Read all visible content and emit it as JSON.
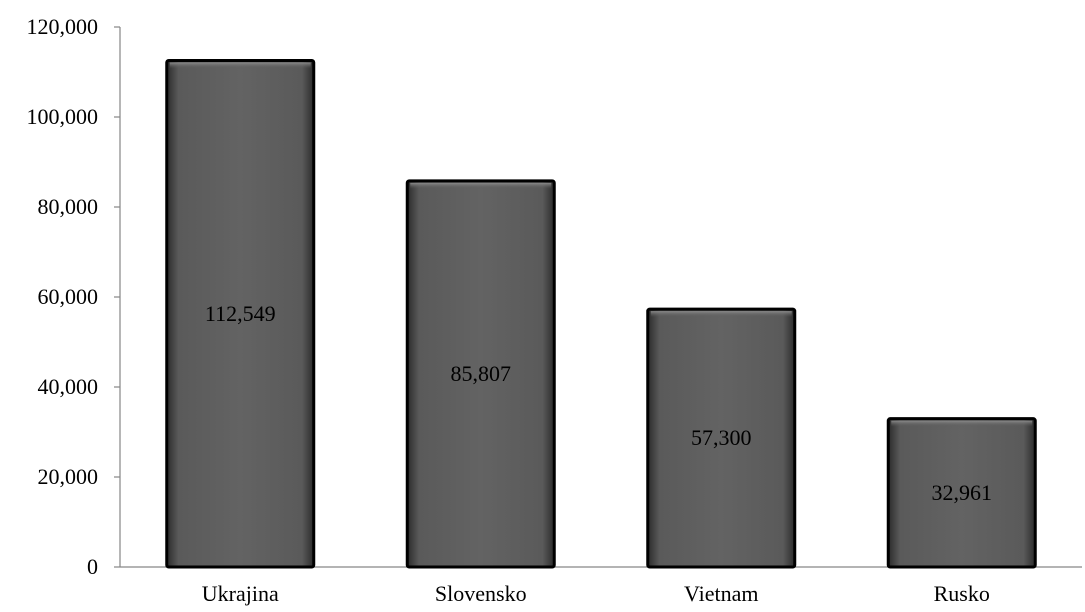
{
  "chart_data": {
    "type": "bar",
    "categories": [
      "Ukrajina",
      "Slovensko",
      "Vietnam",
      "Rusko"
    ],
    "values": [
      112549,
      85807,
      57300,
      32961
    ],
    "value_labels": [
      "112,549",
      "85,807",
      "57,300",
      "32,961"
    ],
    "title": "",
    "xlabel": "",
    "ylabel": "",
    "ylim": [
      0,
      120000
    ],
    "yticks": [
      0,
      20000,
      40000,
      60000,
      80000,
      100000,
      120000
    ],
    "ytick_labels": [
      "0",
      "20,000",
      "40,000",
      "60,000",
      "80,000",
      "100,000",
      "120,000"
    ],
    "grid": false,
    "legend": "none",
    "bar_color": "#5f5f5f",
    "bar_edge_color": "#000000"
  }
}
